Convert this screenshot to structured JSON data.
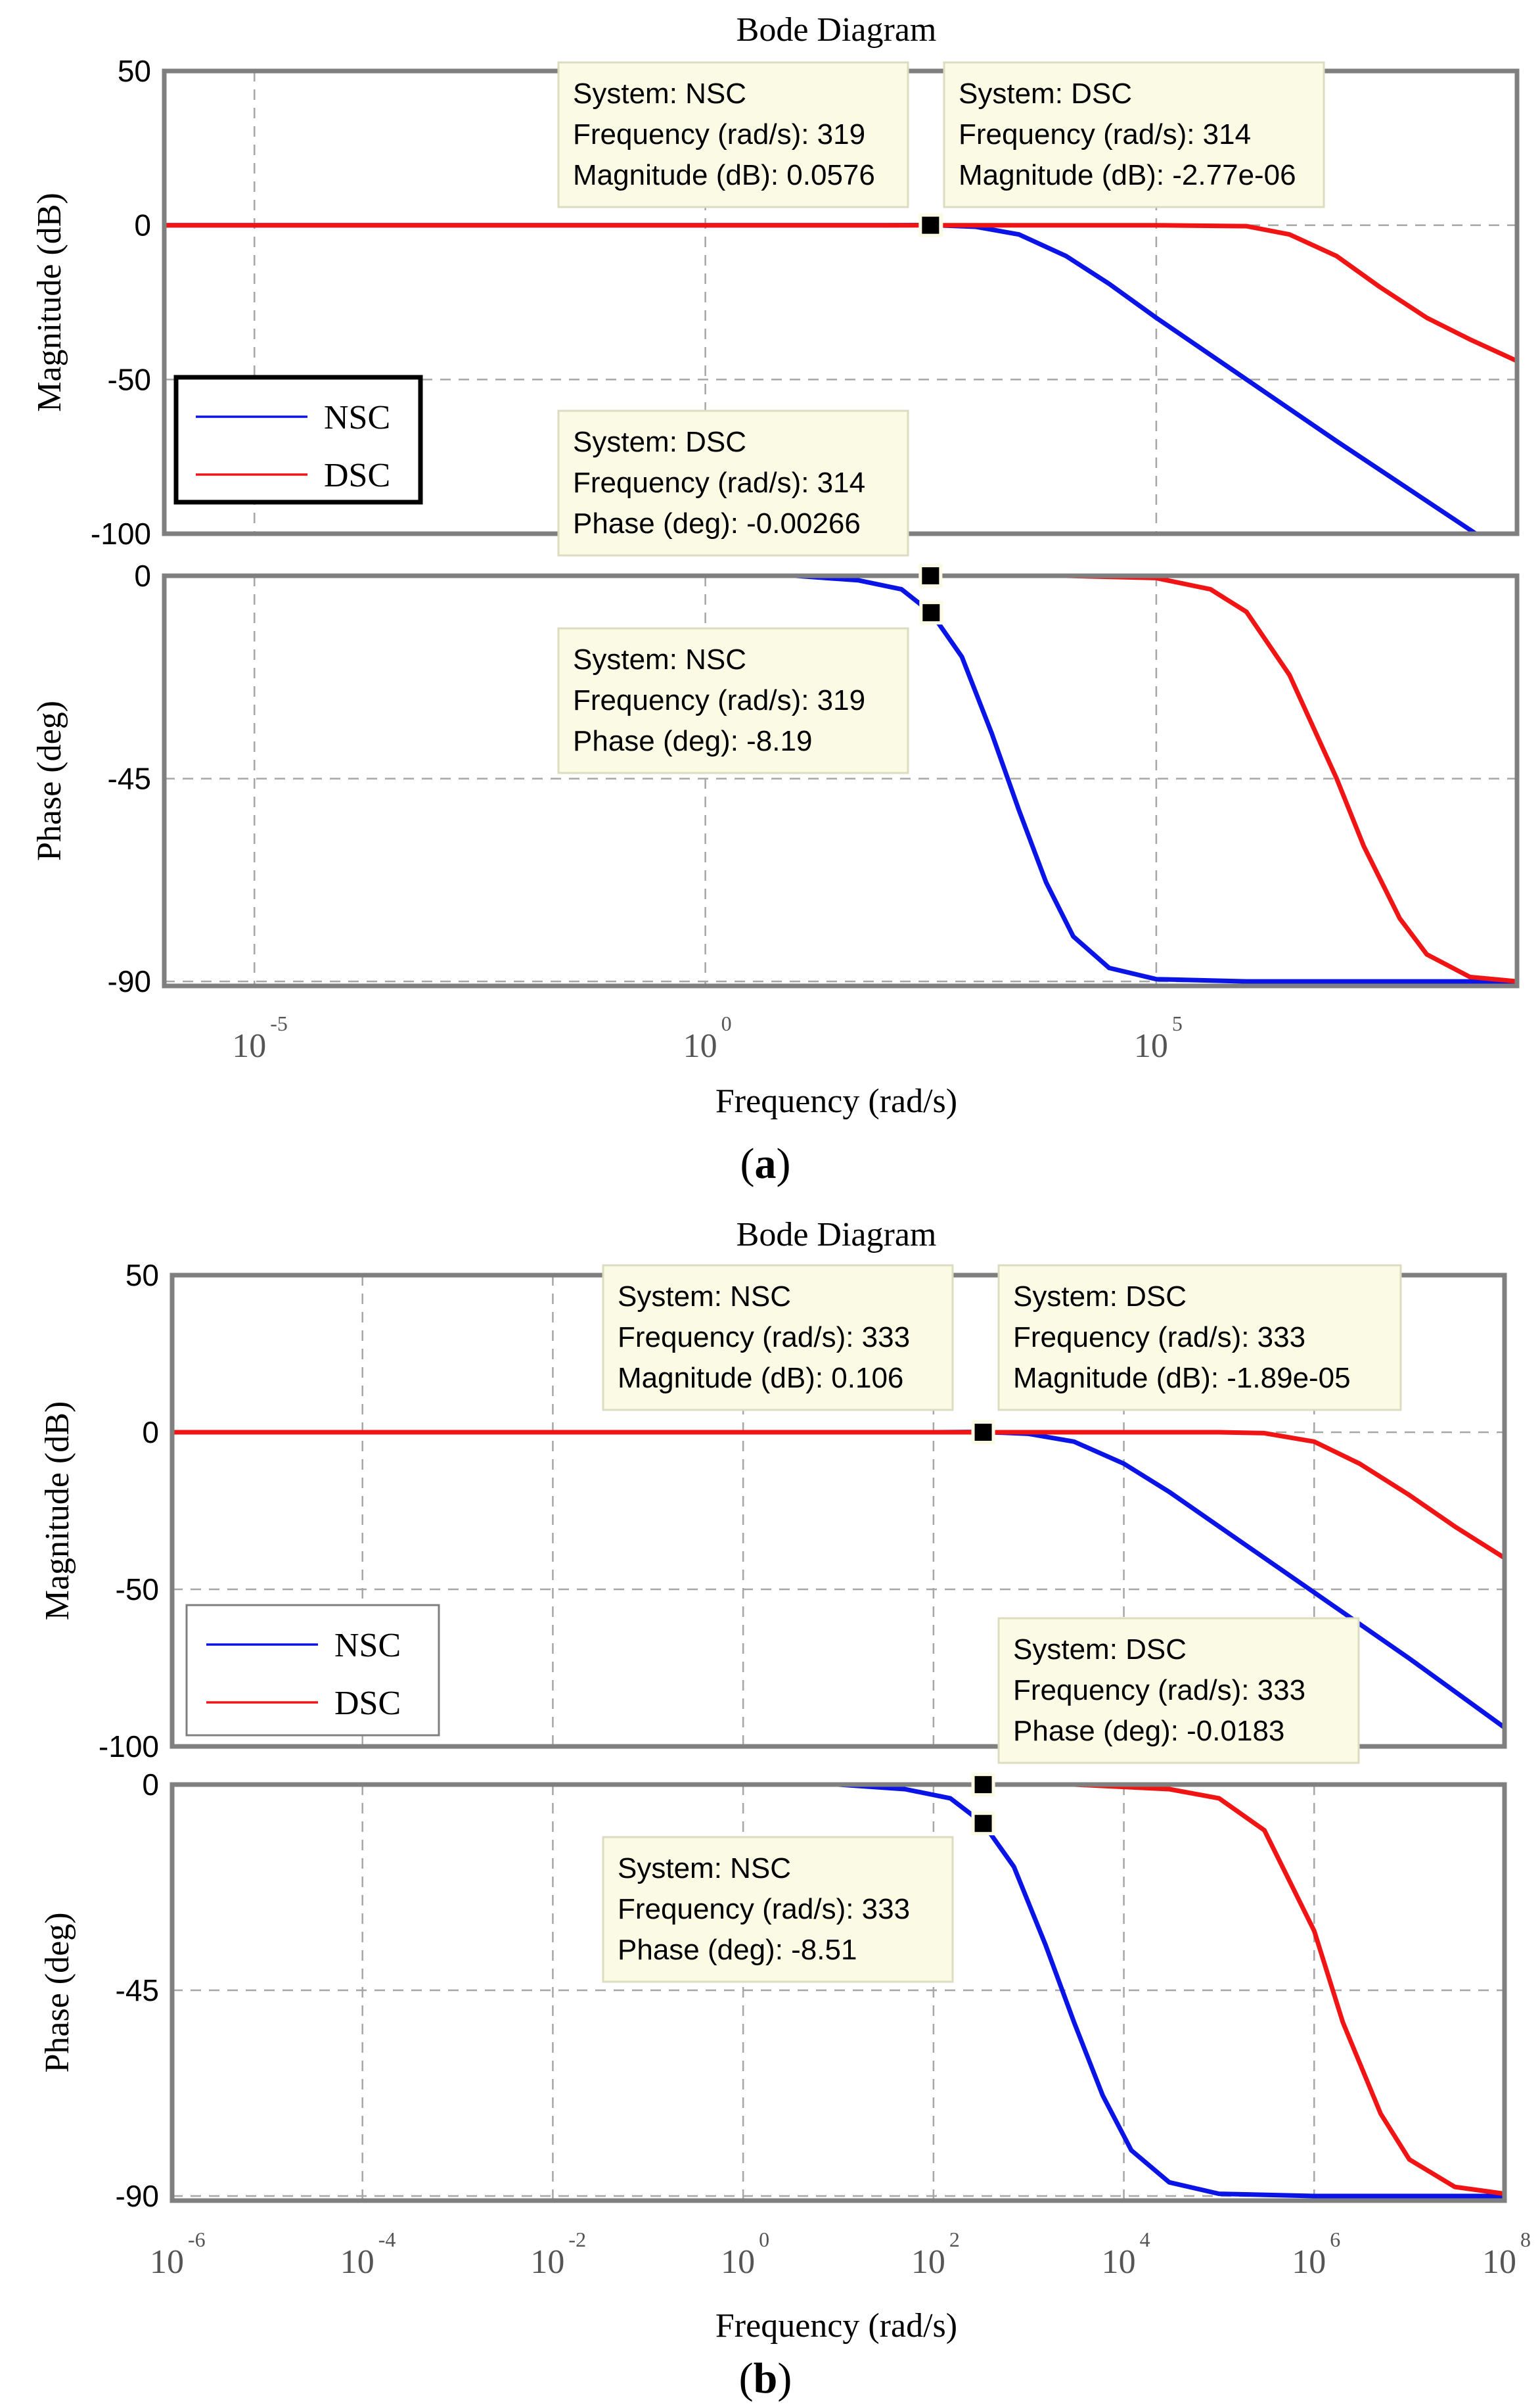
{
  "chart_data": [
    {
      "type": "line",
      "panel_label": "a",
      "title": "Bode Diagram",
      "xlabel": "Frequency  (rad/s)",
      "x_scale": "log",
      "xlim": [
        1e-06,
        1000000000.0
      ],
      "x_ticks": [
        {
          "value": 1e-05,
          "base": "10",
          "exp": "-5"
        },
        {
          "value": 1,
          "base": "10",
          "exp": "0"
        },
        {
          "value": 100000.0,
          "base": "10",
          "exp": "5"
        }
      ],
      "legend": {
        "placement": "lower-left of magnitude plot",
        "entries": [
          {
            "name": "NSC",
            "color": "#0a14e6"
          },
          {
            "name": "DSC",
            "color": "#f01414"
          }
        ]
      },
      "subplots": [
        {
          "ylabel": "Magnitude (dB)",
          "ylim": [
            -100,
            50
          ],
          "y_ticks": [
            {
              "value": 50,
              "label": "50"
            },
            {
              "value": 0,
              "label": "0"
            },
            {
              "value": -50,
              "label": "-50"
            },
            {
              "value": -100,
              "label": "-100"
            }
          ],
          "series": [
            {
              "name": "NSC",
              "color": "#0a14e6",
              "x": [
                1e-06,
                100,
                319,
                1000,
                3000,
                10000,
                30000,
                100000,
                1000000.0,
                10000000.0,
                350000000.0
              ],
              "y": [
                0,
                0,
                0.0576,
                -0.5,
                -3,
                -10,
                -19,
                -30,
                -50,
                -70,
                -100
              ]
            },
            {
              "name": "DSC",
              "color": "#f01414",
              "x": [
                1e-06,
                314,
                10000,
                100000,
                1000000.0,
                3000000.0,
                10000000.0,
                30000000.0,
                100000000.0,
                300000000.0,
                1000000000.0
              ],
              "y": [
                0,
                0,
                0,
                0,
                -0.3,
                -3,
                -10,
                -20,
                -30,
                -37,
                -44
              ]
            }
          ],
          "annotations": [
            {
              "series": "NSC",
              "lines": [
                "System: NSC",
                "Frequency (rad/s): 319",
                "Magnitude (dB): 0.0576"
              ],
              "x": 319,
              "y": 0.0576
            },
            {
              "series": "DSC",
              "lines": [
                "System: DSC",
                "Frequency (rad/s): 314",
                "Magnitude (dB): -2.77e-06"
              ],
              "x": 314,
              "y": -2.77e-06
            }
          ]
        },
        {
          "ylabel": "Phase (deg)",
          "ylim": [
            -91,
            0
          ],
          "y_ticks": [
            {
              "value": 0,
              "label": "0"
            },
            {
              "value": -45,
              "label": "-45"
            },
            {
              "value": -90,
              "label": "-90"
            }
          ],
          "series": [
            {
              "name": "NSC",
              "color": "#0a14e6",
              "x": [
                1e-06,
                10,
                50,
                150,
                319,
                700,
                1500,
                3000,
                6000,
                12000,
                30000,
                100000,
                1000000.0,
                1000000000.0
              ],
              "y": [
                0,
                0,
                -1,
                -3,
                -8.19,
                -18,
                -35,
                -52,
                -68,
                -80,
                -87,
                -89.5,
                -90,
                -90
              ]
            },
            {
              "name": "DSC",
              "color": "#f01414",
              "x": [
                1e-06,
                10000,
                100000,
                400000,
                1000000.0,
                3000000.0,
                10000000.0,
                20000000.0,
                50000000.0,
                100000000.0,
                300000000.0,
                1000000000.0
              ],
              "y": [
                0,
                0,
                -0.5,
                -3,
                -8,
                -22,
                -45,
                -60,
                -76,
                -84,
                -89,
                -90
              ]
            }
          ],
          "annotations": [
            {
              "series": "DSC",
              "lines": [
                "System: DSC",
                "Frequency (rad/s): 314",
                "Phase (deg): -0.00266"
              ],
              "x": 314,
              "y": -0.00266
            },
            {
              "series": "NSC",
              "lines": [
                "System: NSC",
                "Frequency (rad/s): 319",
                "Phase (deg): -8.19"
              ],
              "x": 319,
              "y": -8.19
            }
          ]
        }
      ]
    },
    {
      "type": "line",
      "panel_label": "b",
      "title": "Bode Diagram",
      "xlabel": "Frequency  (rad/s)",
      "x_scale": "log",
      "xlim": [
        1e-06,
        100000000.0
      ],
      "x_ticks": [
        {
          "value": 1e-06,
          "base": "10",
          "exp": "-6"
        },
        {
          "value": 0.0001,
          "base": "10",
          "exp": "-4"
        },
        {
          "value": 0.01,
          "base": "10",
          "exp": "-2"
        },
        {
          "value": 1,
          "base": "10",
          "exp": "0"
        },
        {
          "value": 100,
          "base": "10",
          "exp": "2"
        },
        {
          "value": 10000,
          "base": "10",
          "exp": "4"
        },
        {
          "value": 1000000.0,
          "base": "10",
          "exp": "6"
        },
        {
          "value": 100000000.0,
          "base": "10",
          "exp": "8"
        }
      ],
      "legend": {
        "placement": "lower-left of magnitude plot",
        "entries": [
          {
            "name": "NSC",
            "color": "#0a14e6"
          },
          {
            "name": "DSC",
            "color": "#f01414"
          }
        ]
      },
      "subplots": [
        {
          "ylabel": "Magnitude (dB)",
          "ylim": [
            -100,
            50
          ],
          "y_ticks": [
            {
              "value": 50,
              "label": "50"
            },
            {
              "value": 0,
              "label": "0"
            },
            {
              "value": -50,
              "label": "-50"
            },
            {
              "value": -100,
              "label": "-100"
            }
          ],
          "series": [
            {
              "name": "NSC",
              "color": "#0a14e6",
              "x": [
                1e-06,
                100,
                333,
                1000,
                3000,
                10000,
                30000,
                100000,
                1000000.0,
                10000000.0,
                100000000.0
              ],
              "y": [
                0,
                0,
                0.106,
                -0.5,
                -3,
                -10,
                -19,
                -30,
                -51,
                -72,
                -94
              ]
            },
            {
              "name": "DSC",
              "color": "#f01414",
              "x": [
                1e-06,
                333,
                10000,
                100000,
                300000,
                1000000.0,
                3000000.0,
                10000000.0,
                30000000.0,
                100000000.0
              ],
              "y": [
                0,
                0,
                0,
                0,
                -0.3,
                -3,
                -10,
                -20,
                -30,
                -40
              ]
            }
          ],
          "annotations": [
            {
              "series": "NSC",
              "lines": [
                "System: NSC",
                "Frequency (rad/s): 333",
                "Magnitude (dB): 0.106"
              ],
              "x": 333,
              "y": 0.106
            },
            {
              "series": "DSC",
              "lines": [
                "System: DSC",
                "Frequency (rad/s): 333",
                "Magnitude (dB): -1.89e-05"
              ],
              "x": 333,
              "y": -1.89e-05
            }
          ]
        },
        {
          "ylabel": "Phase (deg)",
          "ylim": [
            -91,
            0
          ],
          "y_ticks": [
            {
              "value": 0,
              "label": "0"
            },
            {
              "value": -45,
              "label": "-45"
            },
            {
              "value": -90,
              "label": "-90"
            }
          ],
          "series": [
            {
              "name": "NSC",
              "color": "#0a14e6",
              "x": [
                1e-06,
                10,
                50,
                150,
                333,
                700,
                1500,
                3000,
                6000,
                12000,
                30000,
                100000,
                1000000.0,
                100000000.0
              ],
              "y": [
                0,
                0,
                -1,
                -3,
                -8.51,
                -18,
                -35,
                -52,
                -68,
                -80,
                -87,
                -89.5,
                -90,
                -90
              ]
            },
            {
              "name": "DSC",
              "color": "#f01414",
              "x": [
                1e-06,
                3000,
                30000,
                100000,
                300000,
                1000000.0,
                2000000.0,
                5000000.0,
                10000000.0,
                30000000.0,
                100000000.0
              ],
              "y": [
                0,
                0,
                -1,
                -3,
                -10,
                -32,
                -52,
                -72,
                -82,
                -88,
                -89.5
              ]
            }
          ],
          "annotations": [
            {
              "series": "DSC",
              "lines": [
                "System: DSC",
                "Frequency (rad/s): 333",
                "Phase (deg): -0.0183"
              ],
              "x": 333,
              "y": -0.0183
            },
            {
              "series": "NSC",
              "lines": [
                "System: NSC",
                "Frequency (rad/s): 333",
                "Phase (deg): -8.51"
              ],
              "x": 333,
              "y": -8.51
            }
          ]
        }
      ]
    }
  ]
}
